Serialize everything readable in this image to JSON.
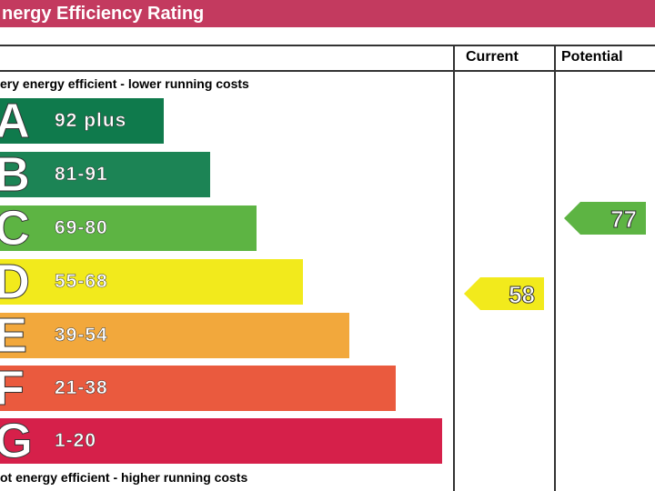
{
  "header": {
    "title": "nergy Efficiency Rating"
  },
  "columns": {
    "current": "Current",
    "potential": "Potential"
  },
  "top_note": "ery energy efficient - lower running costs",
  "bottom_note": "ot energy efficient - higher running costs",
  "bands": [
    {
      "letter": "A",
      "range": "92 plus",
      "color": "#0f7a4c"
    },
    {
      "letter": "B",
      "range": "81-91",
      "color": "#1c8455"
    },
    {
      "letter": "C",
      "range": "69-80",
      "color": "#5db443"
    },
    {
      "letter": "D",
      "range": "55-68",
      "color": "#f2ea1c"
    },
    {
      "letter": "E",
      "range": "39-54",
      "color": "#f2a83c"
    },
    {
      "letter": "F",
      "range": "21-38",
      "color": "#ea5a3e"
    },
    {
      "letter": "G",
      "range": "1-20",
      "color": "#d6204a"
    }
  ],
  "current": {
    "value": 58,
    "color": "#f2ea1c"
  },
  "potential": {
    "value": 77,
    "color": "#5db443"
  }
}
